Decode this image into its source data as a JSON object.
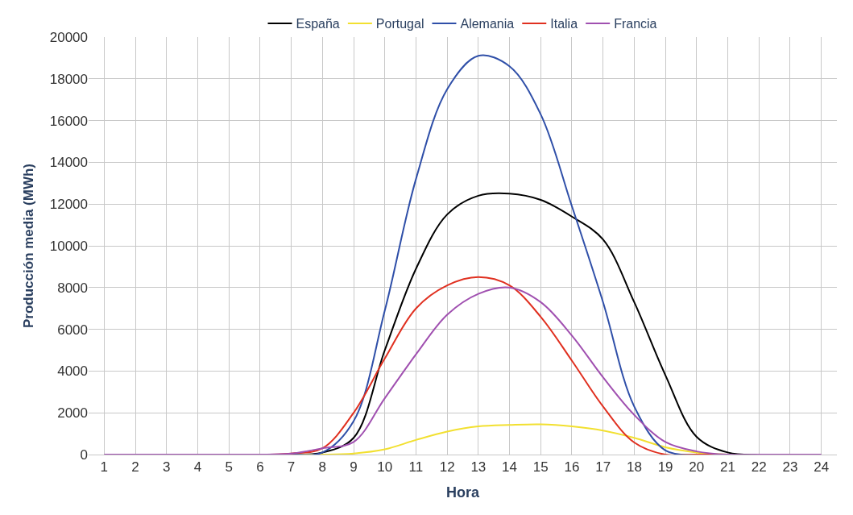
{
  "chart_data": {
    "type": "line",
    "xlabel": "Hora",
    "ylabel": "Producción media (MWh)",
    "x": [
      1,
      2,
      3,
      4,
      5,
      6,
      7,
      8,
      9,
      10,
      11,
      12,
      13,
      14,
      15,
      16,
      17,
      18,
      19,
      20,
      21,
      22,
      23,
      24
    ],
    "series": [
      {
        "name": "España",
        "color": "#000000",
        "values": [
          null,
          null,
          null,
          null,
          null,
          null,
          0,
          100,
          800,
          5000,
          8900,
          11500,
          12400,
          12500,
          12200,
          11400,
          10300,
          7300,
          3800,
          850,
          100,
          0,
          null,
          null
        ]
      },
      {
        "name": "Portugal",
        "color": "#f2e030",
        "values": [
          null,
          null,
          null,
          null,
          null,
          null,
          0,
          0,
          50,
          250,
          700,
          1100,
          1350,
          1420,
          1450,
          1350,
          1150,
          800,
          350,
          100,
          0,
          null,
          null,
          null
        ]
      },
      {
        "name": "Alemania",
        "color": "#2f4fa8",
        "values": [
          null,
          null,
          null,
          null,
          null,
          0,
          0,
          100,
          1600,
          6900,
          13200,
          17500,
          19100,
          18600,
          16300,
          11900,
          7300,
          2300,
          200,
          0,
          null,
          null,
          null,
          null
        ]
      },
      {
        "name": "Italia",
        "color": "#e03020",
        "values": [
          null,
          null,
          null,
          null,
          null,
          0,
          50,
          300,
          2000,
          4600,
          7000,
          8100,
          8500,
          8100,
          6600,
          4500,
          2300,
          580,
          0,
          0,
          0,
          null,
          null,
          null
        ]
      },
      {
        "name": "Francia",
        "color": "#a050b0",
        "values": [
          0,
          0,
          0,
          0,
          0,
          0,
          50,
          300,
          600,
          2700,
          4800,
          6700,
          7700,
          8000,
          7300,
          5700,
          3700,
          1900,
          600,
          150,
          0,
          0,
          0,
          0
        ]
      }
    ],
    "xlim": [
      0.5,
      24.5
    ],
    "xticks": [
      1,
      2,
      3,
      4,
      5,
      6,
      7,
      8,
      9,
      10,
      11,
      12,
      13,
      14,
      15,
      16,
      17,
      18,
      19,
      20,
      21,
      22,
      23,
      24
    ],
    "ylim": [
      0,
      20000
    ],
    "yticks": [
      0,
      2000,
      4000,
      6000,
      8000,
      10000,
      12000,
      14000,
      16000,
      18000,
      20000
    ],
    "grid": true,
    "legend": "top",
    "marker": "none",
    "line_style": "solid"
  }
}
